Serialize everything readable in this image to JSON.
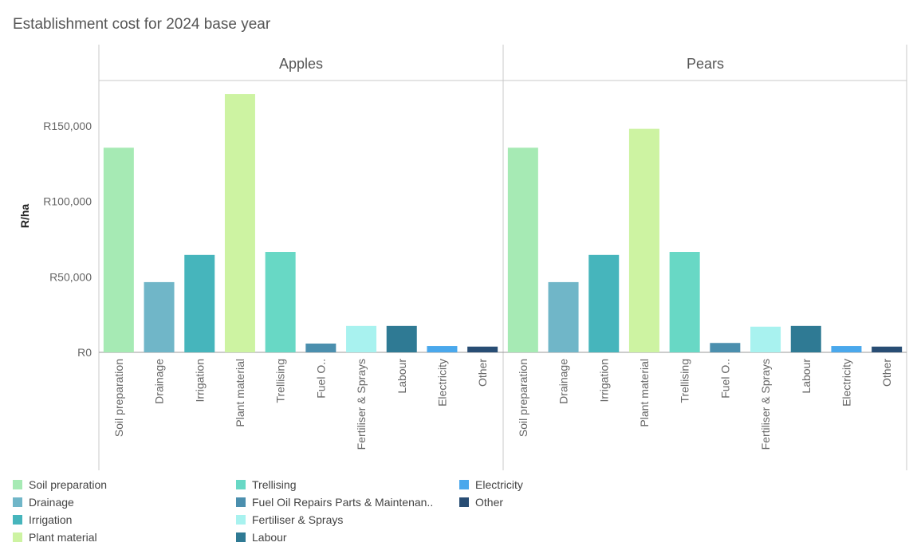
{
  "title": "Establishment cost for 2024 base year",
  "colors": {
    "Soil preparation": "#a6eab4",
    "Drainage": "#70b6c8",
    "Irrigation": "#46b5bc",
    "Plant material": "#cdf3a2",
    "Trellising": "#68d8c5",
    "Fuel Oil Repairs Parts & Maintenance": "#4b8fae",
    "Fertiliser & Sprays": "#a8f2ef",
    "Labour": "#2f7a94",
    "Electricity": "#4aa8ec",
    "Other": "#284d74"
  },
  "chart_data": {
    "type": "bar",
    "title": "Establishment cost for 2024 base year",
    "ylabel": "R/ha",
    "xlabel": "",
    "ylim": [
      0,
      180000
    ],
    "yticks": [
      0,
      50000,
      100000,
      150000
    ],
    "ytick_labels": [
      "R0",
      "R50,000",
      "R100,000",
      "R150,000"
    ],
    "categories": [
      "Soil preparation",
      "Drainage",
      "Irrigation",
      "Plant material",
      "Trellising",
      "Fuel Oil Repairs Parts & Maintenance",
      "Fertiliser & Sprays",
      "Labour",
      "Electricity",
      "Other"
    ],
    "category_tick_labels": [
      "Soil preparation",
      "Drainage",
      "Irrigation",
      "Plant material",
      "Trellising",
      "Fuel O..",
      "Fertiliser & Sprays",
      "Labour",
      "Electricity",
      "Other"
    ],
    "panels": [
      {
        "name": "Apples",
        "values": [
          135500,
          46500,
          64500,
          171000,
          66500,
          5800,
          17500,
          17500,
          4200,
          3800
        ]
      },
      {
        "name": "Pears",
        "values": [
          135500,
          46500,
          64500,
          148000,
          66500,
          6200,
          17000,
          17500,
          4200,
          3800
        ]
      }
    ]
  },
  "legend": {
    "items": [
      "Soil preparation",
      "Drainage",
      "Irrigation",
      "Plant material",
      "Trellising",
      "Fuel Oil Repairs Parts & Maintenan..",
      "Fertiliser & Sprays",
      "Labour",
      "Electricity",
      "Other"
    ],
    "color_keys": [
      "Soil preparation",
      "Drainage",
      "Irrigation",
      "Plant material",
      "Trellising",
      "Fuel Oil Repairs Parts & Maintenance",
      "Fertiliser & Sprays",
      "Labour",
      "Electricity",
      "Other"
    ]
  }
}
